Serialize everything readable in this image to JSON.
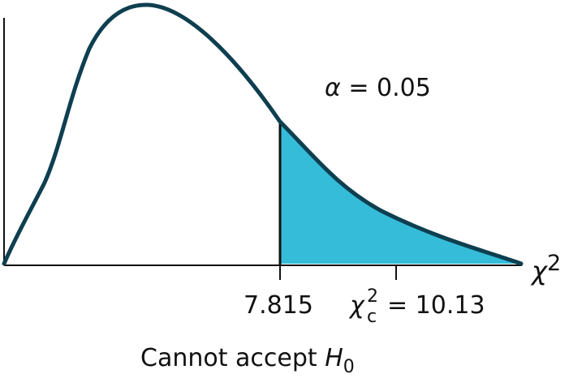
{
  "figure": {
    "alpha_symbol": "α",
    "alpha_text": " = 0.05",
    "critical_value": "7.815",
    "test_stat_symbol": "χ",
    "test_stat_sub": "c",
    "test_stat_sup": "2",
    "test_stat_value": "= 10.13",
    "axis_symbol": "χ",
    "axis_sup": "2",
    "caption_text": "Cannot accept ",
    "caption_symbol": "H",
    "caption_sub": "0"
  },
  "colors": {
    "curve": "#0e3f50",
    "shaded_region": "#35bcd8",
    "axis": "#111111"
  }
}
